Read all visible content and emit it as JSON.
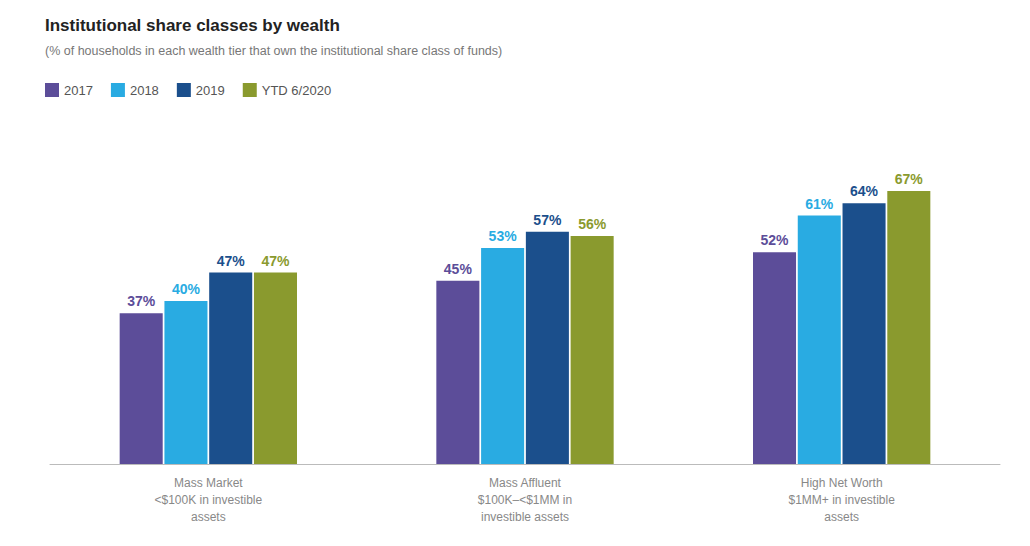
{
  "chart_data": {
    "type": "bar",
    "title": "Institutional share classes by wealth",
    "subtitle": "(% of households in each wealth tier that own the institutional share class of funds)",
    "categories": [
      "Mass Market\n<$100K in investible\nassets",
      "Mass Affluent\n$100K–<$1MM in\ninvestible assets",
      "High Net Worth\n$1MM+ in investible\nassets"
    ],
    "series": [
      {
        "name": "2017",
        "color": "#5c4d99",
        "values": [
          37,
          45,
          52
        ],
        "value_labels": [
          "37%",
          "45%",
          "52%"
        ]
      },
      {
        "name": "2018",
        "color": "#29abe2",
        "values": [
          40,
          53,
          61
        ],
        "value_labels": [
          "40%",
          "53%",
          "61%"
        ]
      },
      {
        "name": "2019",
        "color": "#1b4f8c",
        "values": [
          47,
          57,
          64
        ],
        "value_labels": [
          "47%",
          "57%",
          "64%"
        ]
      },
      {
        "name": "YTD 6/2020",
        "color": "#8a9a2e",
        "values": [
          47,
          56,
          67
        ],
        "value_labels": [
          "47%",
          "56%",
          "67%"
        ]
      }
    ],
    "ylim": [
      0,
      82
    ],
    "grid": false,
    "legend": "upper left",
    "data_labels": true,
    "tick_labels": "x"
  }
}
